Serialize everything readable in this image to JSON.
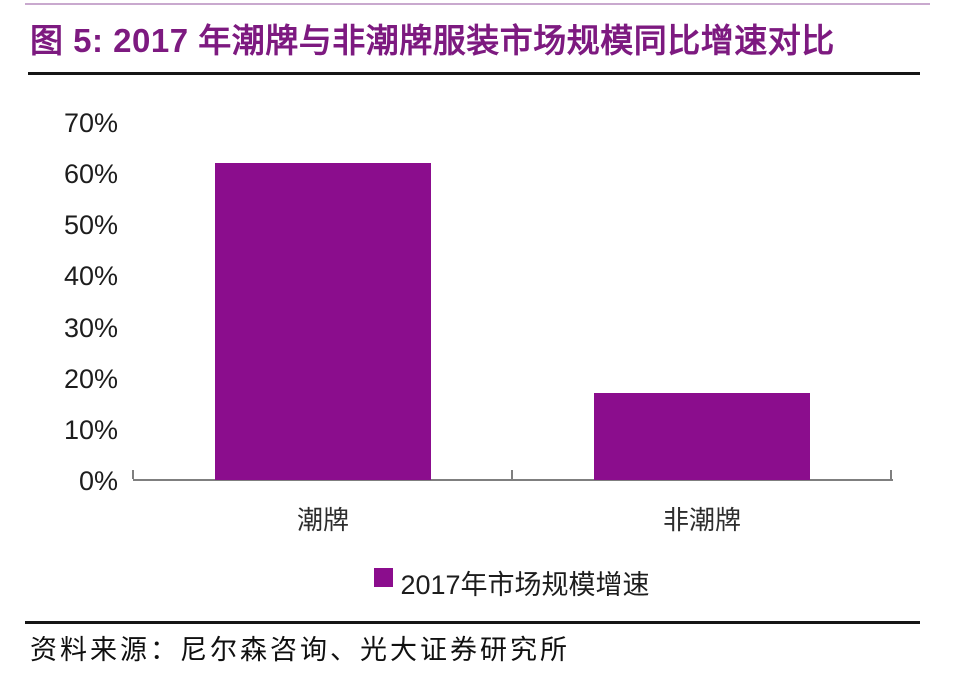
{
  "figure": {
    "title": "图 5: 2017 年潮牌与非潮牌服装市场规模同比增速对比",
    "source_note": "资料来源：尼尔森咨询、光大证券研究所"
  },
  "colors": {
    "bar": "#8B0D8D",
    "title_text": "#7D1A80",
    "axis_line": "#7F7F7F",
    "rule_line": "#151515",
    "top_rule": "#C9A9CE",
    "tick_text": "#1D1D1D"
  },
  "chart_data": {
    "type": "bar",
    "title": "图 5: 2017 年潮牌与非潮牌服装市场规模同比增速对比",
    "categories": [
      "潮牌",
      "非潮牌"
    ],
    "series": [
      {
        "name": "2017年市场规模增速",
        "values": [
          62,
          17
        ]
      }
    ],
    "unit": "%",
    "ylim": [
      0,
      70
    ],
    "ytick_interval": 10,
    "ytick_labels": [
      "0%",
      "10%",
      "20%",
      "30%",
      "40%",
      "50%",
      "60%",
      "70%"
    ],
    "xlabel": "",
    "ylabel": "",
    "grid": false,
    "legend_position": "bottom",
    "source": "尼尔森咨询、光大证券研究所"
  }
}
